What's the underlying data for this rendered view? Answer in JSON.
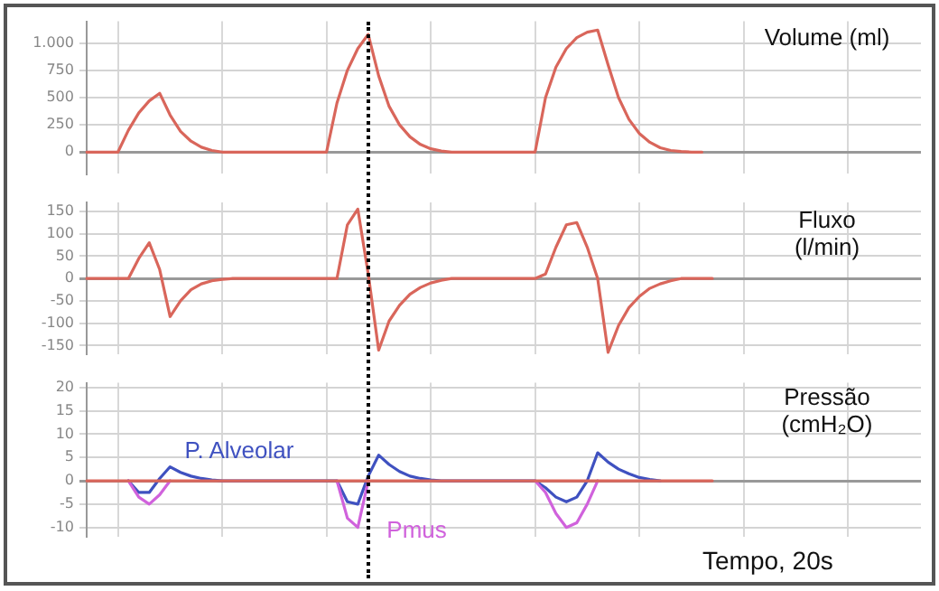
{
  "chart_data": [
    {
      "type": "line",
      "ylabel": "Volume (ml)",
      "categories": [
        null,
        null,
        null,
        null,
        null,
        null,
        null,
        null,
        null,
        null,
        null,
        null,
        null,
        null,
        null,
        null,
        null,
        null,
        null,
        null,
        null,
        null,
        null,
        null,
        null,
        null,
        null,
        null,
        null,
        null,
        null,
        null,
        null,
        null,
        null,
        null,
        null,
        null,
        null,
        null,
        null,
        null,
        null,
        null,
        null,
        null,
        null,
        null,
        null,
        null,
        null,
        null,
        null,
        null,
        null,
        null,
        null,
        null,
        null,
        null,
        null,
        null,
        null,
        null,
        null,
        null,
        null,
        null,
        null,
        null,
        null,
        null,
        null,
        null,
        null,
        null,
        null,
        null,
        null,
        null,
        null
      ],
      "ylim": [
        -200,
        1200
      ],
      "yticks": [
        0,
        250,
        500,
        750,
        {
          "value": 1000,
          "label": "1.000"
        }
      ],
      "grid": true,
      "tick_labels": "y",
      "series": [
        {
          "color": "#d9665b",
          "values": [
            0,
            0,
            0,
            0,
            200,
            360,
            470,
            540,
            340,
            190,
            100,
            45,
            15,
            0,
            0,
            0,
            0,
            0,
            0,
            0,
            0,
            0,
            0,
            0,
            450,
            750,
            950,
            1080,
            700,
            420,
            250,
            140,
            70,
            30,
            10,
            0,
            0,
            0,
            0,
            0,
            0,
            0,
            0,
            0,
            500,
            780,
            950,
            1050,
            1100,
            1120,
            800,
            500,
            300,
            170,
            90,
            40,
            15,
            5,
            0,
            0,
            null,
            null,
            null,
            null,
            null,
            null,
            null,
            null,
            null,
            null,
            null,
            null,
            null,
            null,
            null,
            null,
            null,
            null,
            null,
            null,
            null
          ]
        }
      ]
    },
    {
      "type": "line",
      "ylabel": "Fluxo (l/min)",
      "categories": [
        null,
        null,
        null,
        null,
        null,
        null,
        null,
        null,
        null,
        null,
        null,
        null,
        null,
        null,
        null,
        null,
        null,
        null,
        null,
        null,
        null,
        null,
        null,
        null,
        null,
        null,
        null,
        null,
        null,
        null,
        null,
        null,
        null,
        null,
        null,
        null,
        null,
        null,
        null,
        null,
        null,
        null,
        null,
        null,
        null,
        null,
        null,
        null,
        null,
        null,
        null,
        null,
        null,
        null,
        null,
        null,
        null,
        null,
        null,
        null,
        null,
        null,
        null,
        null,
        null,
        null,
        null,
        null,
        null,
        null,
        null,
        null,
        null,
        null,
        null,
        null,
        null,
        null,
        null,
        null,
        null
      ],
      "ylim": [
        -170,
        170
      ],
      "yticks": [
        -150,
        -100,
        -50,
        0,
        50,
        100,
        150
      ],
      "grid": true,
      "tick_labels": "y",
      "series": [
        {
          "color": "#d9665b",
          "values": [
            0,
            0,
            0,
            0,
            0,
            45,
            80,
            20,
            -85,
            -50,
            -25,
            -12,
            -5,
            -2,
            0,
            0,
            0,
            0,
            0,
            0,
            0,
            0,
            0,
            0,
            0,
            120,
            155,
            10,
            -160,
            -95,
            -60,
            -35,
            -20,
            -10,
            -4,
            0,
            0,
            0,
            0,
            0,
            0,
            0,
            0,
            0,
            10,
            70,
            120,
            125,
            70,
            0,
            -165,
            -105,
            -65,
            -40,
            -22,
            -12,
            -5,
            0,
            0,
            0,
            0,
            null,
            null,
            null,
            null,
            null,
            null,
            null,
            null,
            null,
            null,
            null,
            null,
            null,
            null,
            null,
            null,
            null,
            null,
            null,
            null
          ]
        }
      ]
    },
    {
      "type": "line",
      "ylabel": "Pressão (cmH₂O)",
      "xlabel": "Tempo, 20s",
      "categories": [
        null,
        null,
        null,
        null,
        null,
        null,
        null,
        null,
        null,
        null,
        null,
        null,
        null,
        null,
        null,
        null,
        null,
        null,
        null,
        null,
        null,
        null,
        null,
        null,
        null,
        null,
        null,
        null,
        null,
        null,
        null,
        null,
        null,
        null,
        null,
        null,
        null,
        null,
        null,
        null,
        null,
        null,
        null,
        null,
        null,
        null,
        null,
        null,
        null,
        null,
        null,
        null,
        null,
        null,
        null,
        null,
        null,
        null,
        null,
        null,
        null,
        null,
        null,
        null,
        null,
        null,
        null,
        null,
        null,
        null,
        null,
        null,
        null,
        null,
        null,
        null,
        null,
        null,
        null,
        null,
        null
      ],
      "ylim": [
        -12,
        21
      ],
      "yticks": [
        -10,
        -5,
        0,
        5,
        10,
        15,
        20
      ],
      "grid": true,
      "tick_labels": "y",
      "series": [
        {
          "color": "#d9665b",
          "values": [
            0,
            0,
            0,
            0,
            0,
            0,
            0,
            0,
            0,
            0,
            0,
            0,
            0,
            0,
            0,
            0,
            0,
            0,
            0,
            0,
            0,
            0,
            0,
            0,
            0,
            0,
            0,
            0,
            0,
            0,
            0,
            0,
            0,
            0,
            0,
            0,
            0,
            0,
            0,
            0,
            0,
            0,
            0,
            0,
            0,
            0,
            0,
            0,
            0,
            0,
            0,
            0,
            0,
            0,
            0,
            0,
            0,
            0,
            0,
            0,
            0,
            null,
            null,
            null,
            null,
            null,
            null,
            null,
            null,
            null,
            null,
            null,
            null,
            null,
            null,
            null,
            null,
            null,
            null,
            null,
            null
          ]
        },
        {
          "name": "Pmus",
          "color": "#d062dc",
          "values": [
            null,
            null,
            null,
            null,
            0,
            -3.5,
            -5,
            -3,
            0,
            null,
            null,
            null,
            null,
            null,
            null,
            null,
            null,
            null,
            null,
            null,
            null,
            null,
            null,
            null,
            0,
            -8,
            -10,
            0,
            null,
            null,
            null,
            null,
            null,
            null,
            null,
            null,
            null,
            null,
            null,
            null,
            null,
            null,
            null,
            0,
            -2.5,
            -7,
            -10,
            -9,
            -5,
            0,
            null,
            null,
            null,
            null,
            null,
            null,
            null,
            null,
            null,
            null,
            null,
            null,
            null,
            null,
            null,
            null,
            null,
            null,
            null,
            null,
            null,
            null,
            null,
            null,
            null,
            null,
            null,
            null,
            null,
            null,
            null
          ]
        },
        {
          "name": "P. Alveolar",
          "color": "#3f51c0",
          "values": [
            null,
            null,
            null,
            null,
            0,
            -2.5,
            -2.5,
            0.5,
            3,
            1.8,
            1,
            0.5,
            0.2,
            0,
            0,
            0,
            0,
            0,
            0,
            0,
            0,
            0,
            0,
            0,
            0,
            -4.5,
            -5,
            1,
            5.5,
            3.5,
            2,
            1,
            0.5,
            0.2,
            0,
            0,
            0,
            0,
            0,
            0,
            0,
            0,
            0,
            0,
            -1.5,
            -3.5,
            -4.5,
            -3.5,
            0,
            6,
            4,
            2.5,
            1.5,
            0.7,
            0.3,
            0,
            null,
            null,
            null,
            null,
            null,
            null,
            null,
            null,
            null,
            null,
            null,
            null,
            null,
            null,
            null,
            null,
            null,
            null,
            null,
            null,
            null,
            null,
            null,
            null,
            null
          ]
        }
      ]
    }
  ]
}
